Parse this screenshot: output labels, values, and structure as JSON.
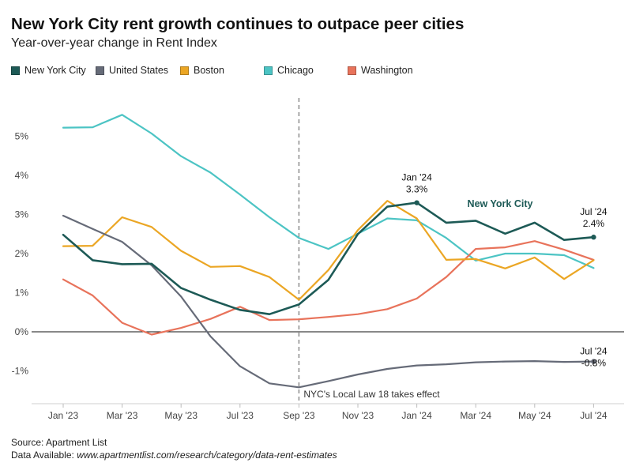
{
  "title": "New York City rent growth continues to outpace peer cities",
  "subtitle": "Year-over-year change in Rent Index",
  "source": "Source: Apartment List",
  "data_available_label": "Data Available:",
  "data_available_url": "www.apartmentlist.com/research/category/data-rent-estimates",
  "chart_data": {
    "type": "line",
    "x": [
      "Jan '23",
      "Feb '23",
      "Mar '23",
      "Apr '23",
      "May '23",
      "Jun '23",
      "Jul '23",
      "Aug '23",
      "Sep '23",
      "Oct '23",
      "Nov '23",
      "Dec '23",
      "Jan '24",
      "Feb '24",
      "Mar '24",
      "Apr '24",
      "May '24",
      "Jun '24",
      "Jul '24"
    ],
    "x_tick_labels": [
      "Jan '23",
      "Mar '23",
      "May '23",
      "Jul '23",
      "Sep '23",
      "Nov '23",
      "Jan '24",
      "Mar '24",
      "May '24",
      "Jul '24"
    ],
    "y_tick_labels": [
      "-1%",
      "0%",
      "1%",
      "2%",
      "3%",
      "4%",
      "5%"
    ],
    "y_ticks": [
      -1,
      0,
      1,
      2,
      3,
      4,
      5
    ],
    "ylim": [
      -1.8,
      6.0
    ],
    "grid": false,
    "legend_position": "top-left",
    "series": [
      {
        "name": "New York City",
        "color": "#1d5a56",
        "values": [
          2.48,
          1.83,
          1.73,
          1.74,
          1.12,
          0.82,
          0.56,
          0.45,
          0.7,
          1.33,
          2.5,
          3.2,
          3.3,
          2.79,
          2.84,
          2.51,
          2.79,
          2.35,
          2.42
        ]
      },
      {
        "name": "United States",
        "color": "#666b78",
        "values": [
          2.97,
          2.63,
          2.3,
          1.7,
          0.9,
          -0.12,
          -0.88,
          -1.32,
          -1.42,
          -1.26,
          -1.09,
          -0.95,
          -0.86,
          -0.83,
          -0.78,
          -0.76,
          -0.75,
          -0.77,
          -0.76
        ]
      },
      {
        "name": "Boston",
        "color": "#eba624",
        "values": [
          2.19,
          2.2,
          2.93,
          2.68,
          2.07,
          1.66,
          1.68,
          1.4,
          0.82,
          1.58,
          2.6,
          3.35,
          2.9,
          1.84,
          1.86,
          1.62,
          1.9,
          1.35,
          1.83
        ]
      },
      {
        "name": "Chicago",
        "color": "#4cc4c4",
        "values": [
          5.22,
          5.23,
          5.55,
          5.07,
          4.49,
          4.07,
          3.51,
          2.93,
          2.4,
          2.12,
          2.51,
          2.9,
          2.85,
          2.4,
          1.82,
          2.0,
          2.0,
          1.96,
          1.63
        ]
      },
      {
        "name": "Washington",
        "color": "#e8735b",
        "values": [
          1.34,
          0.93,
          0.23,
          -0.07,
          0.1,
          0.33,
          0.64,
          0.3,
          0.32,
          0.38,
          0.45,
          0.58,
          0.85,
          1.4,
          2.12,
          2.16,
          2.32,
          2.1,
          1.84
        ]
      }
    ],
    "reference_line": {
      "x": "Sep '23",
      "label": "NYC's Local Law 18 takes effect"
    },
    "annotations": [
      {
        "x": "Jan '24",
        "series": "New York City",
        "line1": "Jan '24",
        "line2": "3.3%"
      },
      {
        "x": "Jul '24",
        "series": "New York City",
        "line1": "Jul '24",
        "line2": "2.4%"
      },
      {
        "x": "Jul '24",
        "series": "United States",
        "line1": "Jul '24",
        "line2": "-0.8%"
      }
    ],
    "series_label": {
      "series": "New York City",
      "text": "New York City"
    }
  }
}
